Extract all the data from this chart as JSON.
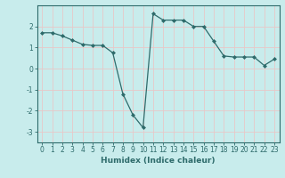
{
  "x": [
    0,
    1,
    2,
    3,
    4,
    5,
    6,
    7,
    8,
    9,
    10,
    11,
    12,
    13,
    14,
    15,
    16,
    17,
    18,
    19,
    20,
    21,
    22,
    23
  ],
  "y": [
    1.7,
    1.7,
    1.55,
    1.35,
    1.15,
    1.1,
    1.1,
    0.75,
    -1.2,
    -2.2,
    -2.8,
    2.6,
    2.3,
    2.3,
    2.3,
    2.0,
    2.0,
    1.3,
    0.6,
    0.55,
    0.55,
    0.55,
    0.15,
    0.45
  ],
  "line_color": "#2e6b6b",
  "marker": "D",
  "marker_size": 2,
  "bg_color": "#c8ecec",
  "grid_color": "#e8c8c8",
  "xlabel": "Humidex (Indice chaleur)",
  "xlim": [
    -0.5,
    23.5
  ],
  "ylim": [
    -3.5,
    3.0
  ],
  "yticks": [
    -3,
    -2,
    -1,
    0,
    1,
    2
  ],
  "xticks": [
    0,
    1,
    2,
    3,
    4,
    5,
    6,
    7,
    8,
    9,
    10,
    11,
    12,
    13,
    14,
    15,
    16,
    17,
    18,
    19,
    20,
    21,
    22,
    23
  ],
  "tick_label_fontsize": 5.5,
  "xlabel_fontsize": 6.5,
  "line_width": 0.9
}
